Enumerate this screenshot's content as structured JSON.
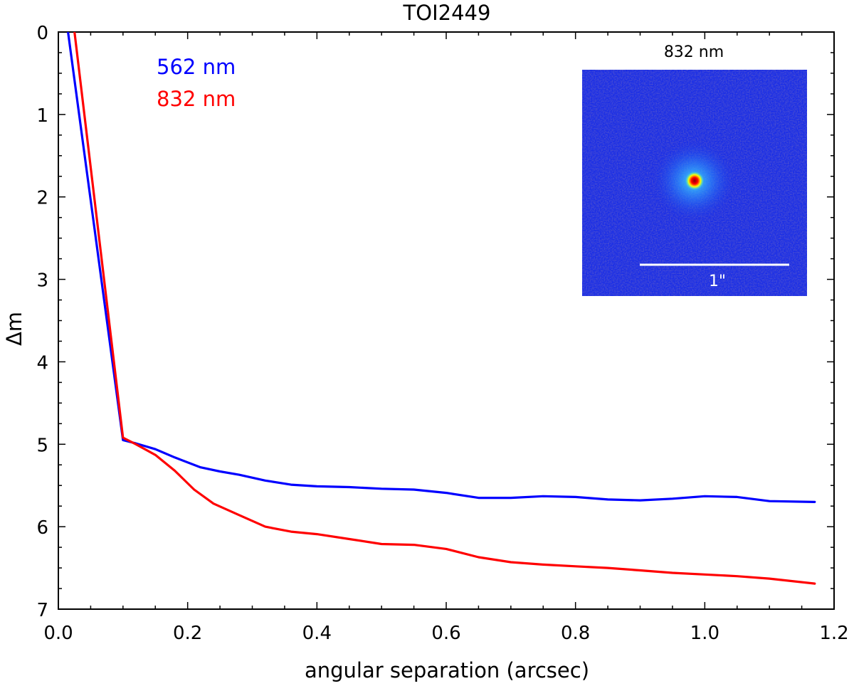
{
  "chart_data": {
    "type": "line",
    "title": "TOI2449",
    "xlabel": "angular separation (arcsec)",
    "ylabel": "Δm",
    "xlim": [
      0.0,
      1.2
    ],
    "ylim": [
      7,
      0
    ],
    "y_inverted": true,
    "xticks": [
      "0.0",
      "0.2",
      "0.4",
      "0.6",
      "0.8",
      "1.0",
      "1.2"
    ],
    "yticks": [
      "0",
      "1",
      "2",
      "3",
      "4",
      "5",
      "6",
      "7"
    ],
    "grid": false,
    "series": [
      {
        "name": "562 nm",
        "color": "#0000ff",
        "x": [
          0.015,
          0.1,
          0.12,
          0.15,
          0.18,
          0.22,
          0.25,
          0.28,
          0.32,
          0.36,
          0.4,
          0.45,
          0.5,
          0.55,
          0.6,
          0.65,
          0.7,
          0.75,
          0.8,
          0.85,
          0.9,
          0.95,
          1.0,
          1.05,
          1.1,
          1.17
        ],
        "y": [
          0.0,
          4.95,
          4.99,
          5.06,
          5.16,
          5.28,
          5.33,
          5.37,
          5.44,
          5.49,
          5.51,
          5.52,
          5.54,
          5.55,
          5.59,
          5.65,
          5.65,
          5.63,
          5.64,
          5.67,
          5.68,
          5.66,
          5.63,
          5.64,
          5.69,
          5.7
        ]
      },
      {
        "name": "832 nm",
        "color": "#ff0000",
        "x": [
          0.025,
          0.1,
          0.12,
          0.15,
          0.18,
          0.21,
          0.24,
          0.28,
          0.32,
          0.36,
          0.4,
          0.45,
          0.5,
          0.55,
          0.6,
          0.65,
          0.7,
          0.75,
          0.8,
          0.85,
          0.9,
          0.95,
          1.0,
          1.05,
          1.1,
          1.17
        ],
        "y": [
          0.0,
          4.92,
          5.0,
          5.13,
          5.32,
          5.55,
          5.72,
          5.86,
          6.0,
          6.06,
          6.09,
          6.15,
          6.21,
          6.22,
          6.27,
          6.37,
          6.43,
          6.46,
          6.48,
          6.5,
          6.53,
          6.56,
          6.58,
          6.6,
          6.63,
          6.69
        ]
      }
    ],
    "legend": {
      "placement": "top-left",
      "entries": [
        "562 nm",
        "832 nm"
      ]
    },
    "inset": {
      "title": "832 nm",
      "scale_label": "1\"",
      "background_color": "#1a2ee6",
      "peak_color": "#ff0000",
      "description_colors": [
        "#1a2ee6",
        "#33c8ff",
        "#ffff00",
        "#ff0000"
      ]
    }
  }
}
